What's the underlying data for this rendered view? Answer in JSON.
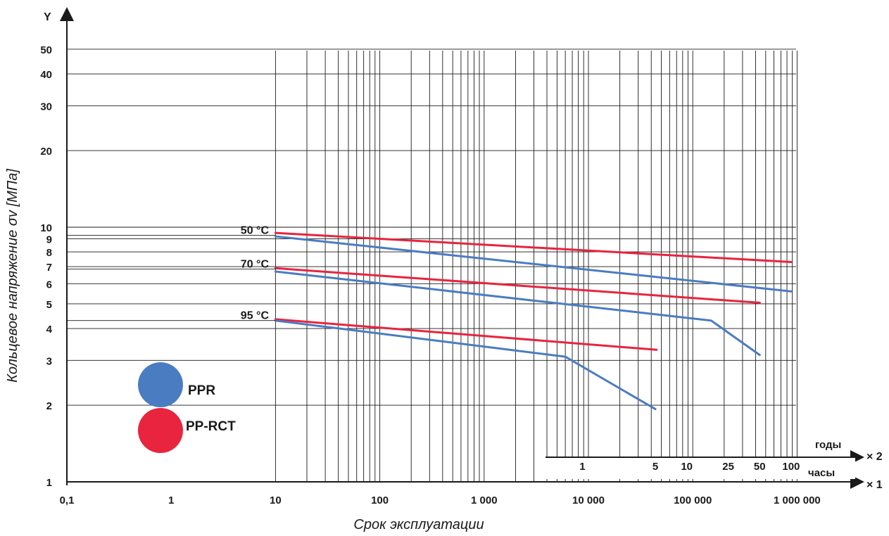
{
  "chart_data": {
    "type": "line",
    "ylabel": "Кольцевое напряжение σv [МПа]",
    "xlabel": "Срок эксплуатации",
    "y_axis_symbol": "Y",
    "x_axis_multipliers": [
      "× 2",
      "× 1"
    ],
    "x_scale": "log",
    "y_scale": "log",
    "xlim": [
      0.1,
      1000000
    ],
    "ylim": [
      1,
      50
    ],
    "grid": true,
    "x_ticks_hours": [
      {
        "value": 0.1,
        "label": "0,1"
      },
      {
        "value": 1,
        "label": "1"
      },
      {
        "value": 10,
        "label": "10"
      },
      {
        "value": 100,
        "label": "100"
      },
      {
        "value": 1000,
        "label": "1 000"
      },
      {
        "value": 10000,
        "label": "10 000"
      },
      {
        "value": 100000,
        "label": "100 000"
      },
      {
        "value": 1000000,
        "label": "1 000 000"
      }
    ],
    "x_unit_hours": "часы",
    "x_unit_years": "годы",
    "x_ticks_years": [
      {
        "value": 8760,
        "label": "1"
      },
      {
        "value": 43800,
        "label": "5"
      },
      {
        "value": 87600,
        "label": "10"
      },
      {
        "value": 219000,
        "label": "25"
      },
      {
        "value": 438000,
        "label": "50"
      },
      {
        "value": 876000,
        "label": "100"
      }
    ],
    "y_ticks": [
      {
        "value": 1,
        "label": "1"
      },
      {
        "value": 2,
        "label": "2"
      },
      {
        "value": 3,
        "label": "3"
      },
      {
        "value": 4,
        "label": "4"
      },
      {
        "value": 5,
        "label": "5"
      },
      {
        "value": 6,
        "label": "6"
      },
      {
        "value": 7,
        "label": "7"
      },
      {
        "value": 8,
        "label": "8"
      },
      {
        "value": 9,
        "label": "9"
      },
      {
        "value": 10,
        "label": "10"
      },
      {
        "value": 20,
        "label": "20"
      },
      {
        "value": 30,
        "label": "30"
      },
      {
        "value": 40,
        "label": "40"
      },
      {
        "value": 50,
        "label": "50"
      }
    ],
    "temperature_labels": [
      {
        "label": "50 °C",
        "y": 9.3
      },
      {
        "label": "70 °C",
        "y": 6.85
      },
      {
        "label": "95 °C",
        "y": 4.3
      }
    ],
    "legend": [
      {
        "name": "PPR",
        "color": "#4a7cc2"
      },
      {
        "name": "PP-RCT",
        "color": "#e8243e"
      }
    ],
    "series": [
      {
        "material": "PP-RCT",
        "temperature": "50 °C",
        "color": "#e8243e",
        "points": [
          [
            10,
            9.5
          ],
          [
            876000,
            7.3
          ]
        ]
      },
      {
        "material": "PPR",
        "temperature": "50 °C",
        "color": "#4a7cc2",
        "points": [
          [
            10,
            9.2
          ],
          [
            876000,
            5.6
          ]
        ]
      },
      {
        "material": "PP-RCT",
        "temperature": "70 °C",
        "color": "#e8243e",
        "points": [
          [
            10,
            6.9
          ],
          [
            438000,
            5.05
          ]
        ]
      },
      {
        "material": "PPR",
        "temperature": "70 °C",
        "color": "#4a7cc2",
        "points": [
          [
            10,
            6.7
          ],
          [
            150000,
            4.3
          ],
          [
            438000,
            3.15
          ]
        ]
      },
      {
        "material": "PP-RCT",
        "temperature": "95 °C",
        "color": "#e8243e",
        "points": [
          [
            10,
            4.35
          ],
          [
            45000,
            3.3
          ]
        ]
      },
      {
        "material": "PPR",
        "temperature": "95 °C",
        "color": "#4a7cc2",
        "points": [
          [
            10,
            4.3
          ],
          [
            6000,
            3.1
          ],
          [
            43800,
            1.93
          ]
        ]
      }
    ]
  }
}
